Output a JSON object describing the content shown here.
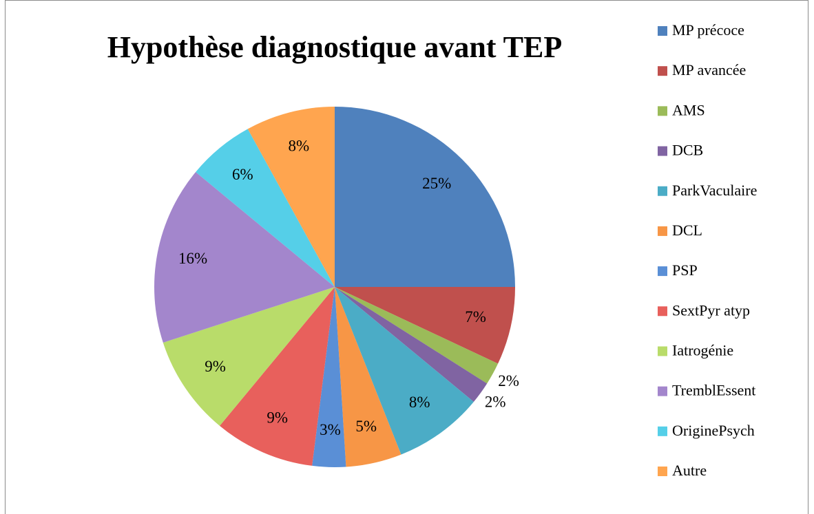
{
  "chart_data": {
    "type": "pie",
    "title": "Hypothèse diagnostique avant TEP",
    "categories": [
      "MP précoce",
      "MP avancée",
      "AMS",
      "DCB",
      "ParkVaculaire",
      "DCL",
      "PSP",
      "SextPyr atyp",
      "Iatrogénie",
      "TremblEssent",
      "OriginePsych",
      "Autre"
    ],
    "values": [
      25,
      7,
      2,
      2,
      8,
      5,
      3,
      9,
      9,
      16,
      6,
      8
    ],
    "value_labels": [
      "25%",
      "7%",
      "2%",
      "2%",
      "8%",
      "5%",
      "3%",
      "9%",
      "9%",
      "16%",
      "6%",
      "8%"
    ],
    "colors": [
      "#4f81bd",
      "#c0504d",
      "#9bbb59",
      "#8064a2",
      "#4bacc6",
      "#f79646",
      "#5a8fd6",
      "#e8605c",
      "#b9dc6a",
      "#a386cc",
      "#55cfe8",
      "#ffa54f"
    ],
    "legend": "right"
  }
}
